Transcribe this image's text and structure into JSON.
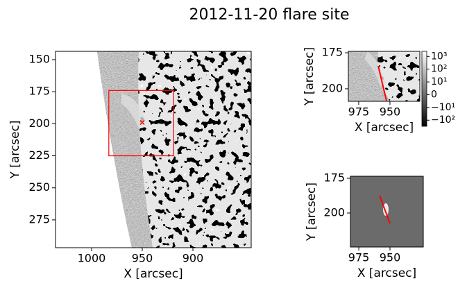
{
  "title": "2012-11-20 flare site",
  "chart_data": [
    {
      "type": "image",
      "xlabel": "X [arcsec]",
      "ylabel": "Y [arcsec]",
      "xlim": [
        1035.6,
        842.5
      ],
      "ylim": [
        296.7,
        143.5
      ],
      "xticks": [
        1000,
        950,
        900
      ],
      "yticks": [
        150,
        175,
        200,
        225,
        250,
        275
      ],
      "color": "#ff0000",
      "box": {
        "x": [
          983,
          919
        ],
        "y": [
          174,
          225
        ]
      },
      "marker": {
        "x": 950,
        "y": 199
      }
    },
    {
      "type": "image",
      "xlabel": "X [arcsec]",
      "ylabel": "Y [arcsec]",
      "xlim": [
        983.3,
        926.1
      ],
      "ylim": [
        208.7,
        174
      ],
      "xticks": [
        975,
        950
      ],
      "yticks": [
        175,
        200
      ],
      "color": "#ff0000",
      "line": {
        "x": [
          959.4,
          952.8
        ],
        "y": [
          184.1,
          208.2
        ]
      },
      "colorbar": {
        "scale": "symlog",
        "linthresh": 10,
        "lim": [
          -300,
          2500
        ],
        "ticks": [
          {
            "value": 1000,
            "label": "10³"
          },
          {
            "value": 100,
            "label": "10²"
          },
          {
            "value": 10,
            "label": "10¹"
          },
          0,
          {
            "value": -10,
            "label": "−10¹"
          },
          {
            "value": -100,
            "label": "−10²"
          }
        ]
      }
    },
    {
      "type": "image",
      "xlabel": "X [arcsec]",
      "ylabel": "Y [arcsec]",
      "xlim": [
        981.7,
        923.3
      ],
      "ylim": [
        224.5,
        173.5
      ],
      "xticks": [
        975,
        950
      ],
      "yticks": [
        175,
        200
      ],
      "color": "#ff0000",
      "line": {
        "x": [
          958.3,
          950
        ],
        "y": [
          187.5,
          207.5
        ]
      }
    }
  ]
}
